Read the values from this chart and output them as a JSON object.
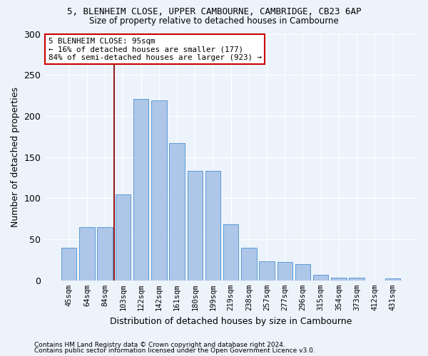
{
  "title1": "5, BLENHEIM CLOSE, UPPER CAMBOURNE, CAMBRIDGE, CB23 6AP",
  "title2": "Size of property relative to detached houses in Cambourne",
  "xlabel": "Distribution of detached houses by size in Cambourne",
  "ylabel": "Number of detached properties",
  "categories": [
    "45sqm",
    "64sqm",
    "84sqm",
    "103sqm",
    "122sqm",
    "142sqm",
    "161sqm",
    "180sqm",
    "199sqm",
    "219sqm",
    "238sqm",
    "257sqm",
    "277sqm",
    "296sqm",
    "315sqm",
    "354sqm",
    "373sqm",
    "412sqm",
    "431sqm"
  ],
  "values": [
    40,
    65,
    65,
    105,
    221,
    219,
    167,
    133,
    133,
    68,
    40,
    23,
    22,
    20,
    7,
    3,
    3,
    0,
    2
  ],
  "bar_color": "#aec6e8",
  "bar_edge_color": "#5b9bd5",
  "background_color": "#edf3fb",
  "grid_color": "#ffffff",
  "vline_color": "#8b0000",
  "annotation_line1": "5 BLENHEIM CLOSE: 95sqm",
  "annotation_line2": "← 16% of detached houses are smaller (177)",
  "annotation_line3": "84% of semi-detached houses are larger (923) →",
  "annotation_box_color": "#ffffff",
  "annotation_box_edge": "#cc0000",
  "ylim": [
    0,
    300
  ],
  "yticks": [
    0,
    50,
    100,
    150,
    200,
    250,
    300
  ],
  "footer1": "Contains HM Land Registry data © Crown copyright and database right 2024.",
  "footer2": "Contains public sector information licensed under the Open Government Licence v3.0."
}
